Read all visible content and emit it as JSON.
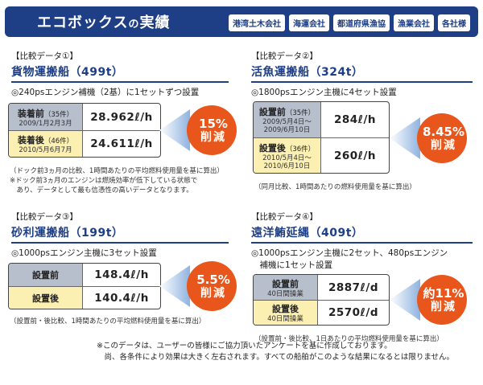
{
  "header": {
    "title_a": "エコボックス",
    "title_b": "の",
    "title_c": "実績",
    "tags": [
      "港湾土木会社",
      "海運会社",
      "都道府県漁協",
      "漁業会社",
      "各社様"
    ]
  },
  "sections": [
    {
      "label": "【比較データ①】",
      "title": "貨物運搬船（499t）",
      "desc": [
        "◎240psエンジン補機（2基）に1セットずつ設置"
      ],
      "rows": [
        {
          "label": "装着前",
          "count": "（35件）",
          "date": "2009/1月2月3月",
          "value": "28.962ℓ/h"
        },
        {
          "label": "装着後",
          "count": "（46件）",
          "date": "2010/5月6月7月",
          "value": "24.611ℓ/h"
        }
      ],
      "badge_pct": "15%",
      "badge_label": "削減",
      "notes": [
        "（ドック前3ヵ月の比較、1時間あたりの平均燃料使用量を基に算出）",
        "※ドック前3ヵ月のエンジンは燃焼効率が低下している状態で",
        "　あり、データとして最も信憑性の高いデータとなります。"
      ]
    },
    {
      "label": "【比較データ②】",
      "title": "活魚運搬船（324t）",
      "desc": [
        "◎1800psエンジン主機に4セット設置"
      ],
      "rows": [
        {
          "label": "設置前",
          "count": "（35件）",
          "date": "2009/5月4日～\n2009/6月10日",
          "value": "284ℓ/h"
        },
        {
          "label": "設置後",
          "count": "（36件）",
          "date": "2010/5月4日～\n2010/6月10日",
          "value": "260ℓ/h"
        }
      ],
      "badge_pct": "8.45%",
      "badge_label": "削減",
      "notes": [
        "（同月比較、1時間あたりの燃料使用量を基に算出）"
      ]
    },
    {
      "label": "【比較データ③】",
      "title": "砂利運搬船（199t）",
      "desc": [
        "◎1000psエンジン主機に3セット設置"
      ],
      "rows": [
        {
          "label": "設置前",
          "count": "",
          "date": "",
          "value": "148.4ℓ/h"
        },
        {
          "label": "設置後",
          "count": "",
          "date": "",
          "value": "140.4ℓ/h"
        }
      ],
      "badge_pct": "5.5%",
      "badge_label": "削減",
      "notes": [
        "（設置前・後比較、1時間あたりの平均燃料使用量を基に算出）"
      ]
    },
    {
      "label": "【比較データ④】",
      "title": "遠洋鮪延縄（409t）",
      "desc": [
        "◎1000psエンジン主機に2セット、480psエンジン",
        "　補機に1セット設置"
      ],
      "rows": [
        {
          "label": "設置前",
          "count": "",
          "date": "40日間操業",
          "value": "2887ℓ/d"
        },
        {
          "label": "設置後",
          "count": "",
          "date": "40日間操業",
          "value": "2570ℓ/d"
        }
      ],
      "badge_pct": "約11%",
      "badge_label": "削減",
      "notes": [
        "（設置前・後比較、1日あたりの平均燃料使用量を基に算出）"
      ]
    }
  ],
  "footer": [
    "※このデータは、ユーザーの皆様にご協力頂いたアンケートを基に作成しております。",
    "　尚、各条件により効果は大きく左右されます。すべての船舶がこのような結果になるとは限りません。"
  ],
  "colors": {
    "navy": "#1e3f86",
    "badge_orange": "#e8561c",
    "before_gray": "#b8bfcc",
    "after_yellow": "#fbefb2",
    "arrow_blue": "#8fb3e0"
  }
}
